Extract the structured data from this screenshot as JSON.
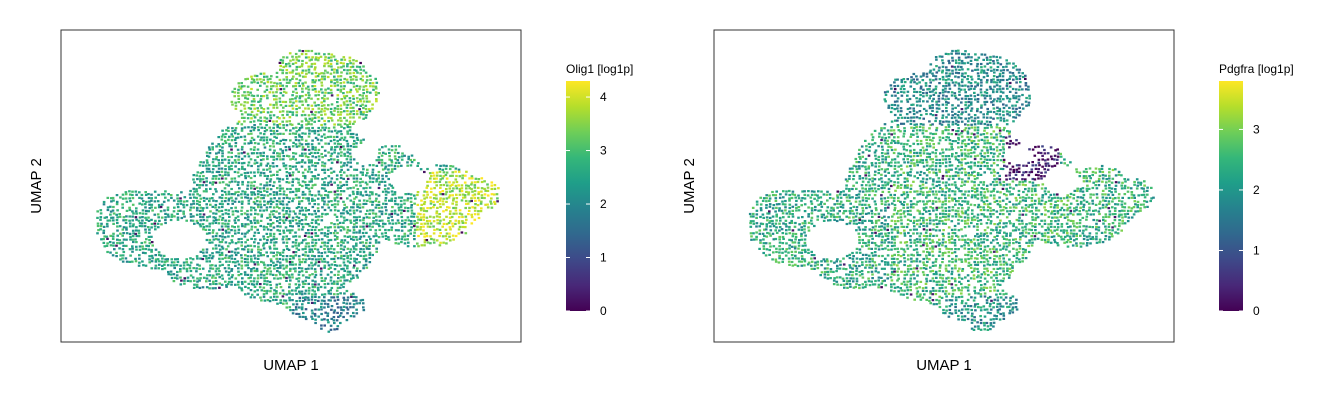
{
  "chart_data": [
    {
      "type": "scatter",
      "subtype": "umap-embedding",
      "xlabel": "UMAP 1",
      "ylabel": "UMAP 2",
      "color_variable": "Olig1 [log1p]",
      "colorscale": "viridis",
      "color_range": [
        0,
        4.3
      ],
      "colorbar_ticks": [
        "0",
        "1",
        "2",
        "3",
        "4"
      ],
      "axis_ticks_shown": false,
      "grid": false,
      "legend": "right (colorbar)",
      "expression_profile": {
        "body": 2.6,
        "body_west": 2.55,
        "top": 3.3,
        "east_cluster": 3.8,
        "bottom_tail": 1.8
      }
    },
    {
      "type": "scatter",
      "subtype": "umap-embedding",
      "xlabel": "UMAP 1",
      "ylabel": "UMAP 2",
      "color_variable": "Pdgfra [log1p]",
      "colorscale": "viridis",
      "color_range": [
        0,
        3.8
      ],
      "colorbar_ticks": [
        "0",
        "1",
        "2",
        "3"
      ],
      "axis_ticks_shown": false,
      "grid": false,
      "legend": "right (colorbar)",
      "expression_profile": {
        "body": 2.5,
        "body_west": 2.3,
        "top": 1.8,
        "east_cluster": 2.4,
        "bottom_tail": 1.9,
        "low_patch": 0.2
      }
    }
  ]
}
